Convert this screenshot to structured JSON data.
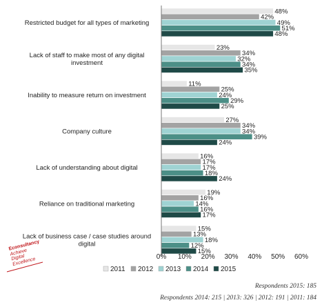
{
  "chart_data": {
    "type": "bar",
    "orientation": "horizontal",
    "categories": [
      [
        "Restricted budget for all types of marketing"
      ],
      [
        "Lack of staff to make most of any digital",
        "investment"
      ],
      [
        "Inability to measure return on investment"
      ],
      [
        "Company culture"
      ],
      [
        "Lack of understanding about digital"
      ],
      [
        "Reliance on traditional marketing"
      ],
      [
        "Lack of business case / case studies around",
        "digital"
      ]
    ],
    "series": [
      {
        "name": "2011",
        "color": "#e6e6e6",
        "values": [
          48,
          23,
          11,
          27,
          16,
          19,
          15
        ]
      },
      {
        "name": "2012",
        "color": "#a3a3a3",
        "values": [
          42,
          34,
          25,
          34,
          17,
          16,
          13
        ]
      },
      {
        "name": "2013",
        "color": "#9fd3d3",
        "values": [
          49,
          32,
          24,
          34,
          17,
          14,
          18
        ]
      },
      {
        "name": "2014",
        "color": "#4c8f87",
        "values": [
          51,
          34,
          29,
          39,
          18,
          16,
          12
        ]
      },
      {
        "name": "2015",
        "color": "#1f4a47",
        "values": [
          48,
          35,
          25,
          24,
          24,
          17,
          15
        ]
      }
    ],
    "value_labels": [
      [
        "48%",
        "23%",
        "11%",
        "27%",
        "16%",
        "19%",
        "15%"
      ],
      [
        "42%",
        "34%",
        "25%",
        "34%",
        "17%",
        "16%",
        "13%"
      ],
      [
        "49%",
        "32%",
        "24%",
        "34%",
        "17%",
        "14%",
        "18%"
      ],
      [
        "51%",
        "34%",
        "29%",
        "39%",
        "18%",
        "16%",
        "12%"
      ],
      [
        "48%",
        "35%",
        "25%",
        "24%",
        "24%",
        "17%",
        "15%"
      ]
    ],
    "xlim": [
      0,
      60
    ],
    "xticks": [
      0,
      10,
      20,
      30,
      40,
      50,
      60
    ],
    "xtick_labels": [
      "0%",
      "10%",
      "20%",
      "30%",
      "40%",
      "50%",
      "60%"
    ],
    "legend_position": "bottom",
    "grid": false
  },
  "footnotes": {
    "line1": "Respondents 2015: 185",
    "line2": "Respondents 2014: 215 | 2013: 326 | 2012: 191 | 2011: 184"
  },
  "logo": {
    "line1": "Econsultancy",
    "line2": "Achieve",
    "line3": "Digital",
    "line4": "Excellence"
  },
  "colors": {
    "logo_red": "#c0161b",
    "bar_outline": "#ffffff"
  }
}
